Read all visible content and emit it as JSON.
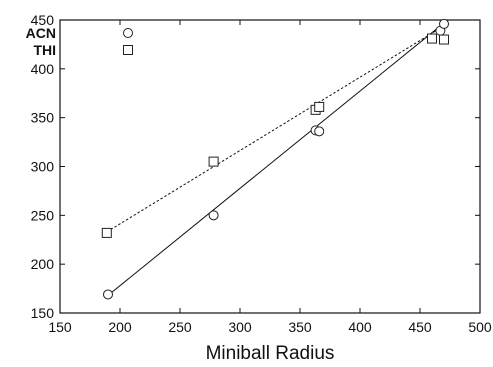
{
  "chart_data": {
    "type": "scatter",
    "title": "",
    "xlabel": "Miniball Radius",
    "ylabel": "",
    "xlim": [
      150,
      500
    ],
    "ylim": [
      150,
      450
    ],
    "xticks": [
      150,
      200,
      250,
      300,
      350,
      400,
      450,
      500
    ],
    "yticks": [
      150,
      200,
      250,
      300,
      350,
      400,
      450
    ],
    "grid": false,
    "legend_position": "top-left",
    "series": [
      {
        "name": "ACN",
        "marker": "circle",
        "line_style": "solid",
        "points": [
          [
            190,
            169
          ],
          [
            278,
            250
          ],
          [
            363,
            337
          ],
          [
            366,
            336
          ],
          [
            460,
            431
          ],
          [
            467,
            439
          ],
          [
            470,
            446
          ]
        ],
        "fit_line": [
          [
            190,
            168
          ],
          [
            470,
            447
          ]
        ]
      },
      {
        "name": "THI",
        "marker": "square",
        "line_style": "dashed",
        "points": [
          [
            189,
            232
          ],
          [
            278,
            305
          ],
          [
            363,
            358
          ],
          [
            366,
            361
          ],
          [
            460,
            431
          ],
          [
            470,
            430
          ]
        ],
        "fit_line": [
          [
            189,
            233
          ],
          [
            470,
            444
          ]
        ]
      }
    ]
  }
}
